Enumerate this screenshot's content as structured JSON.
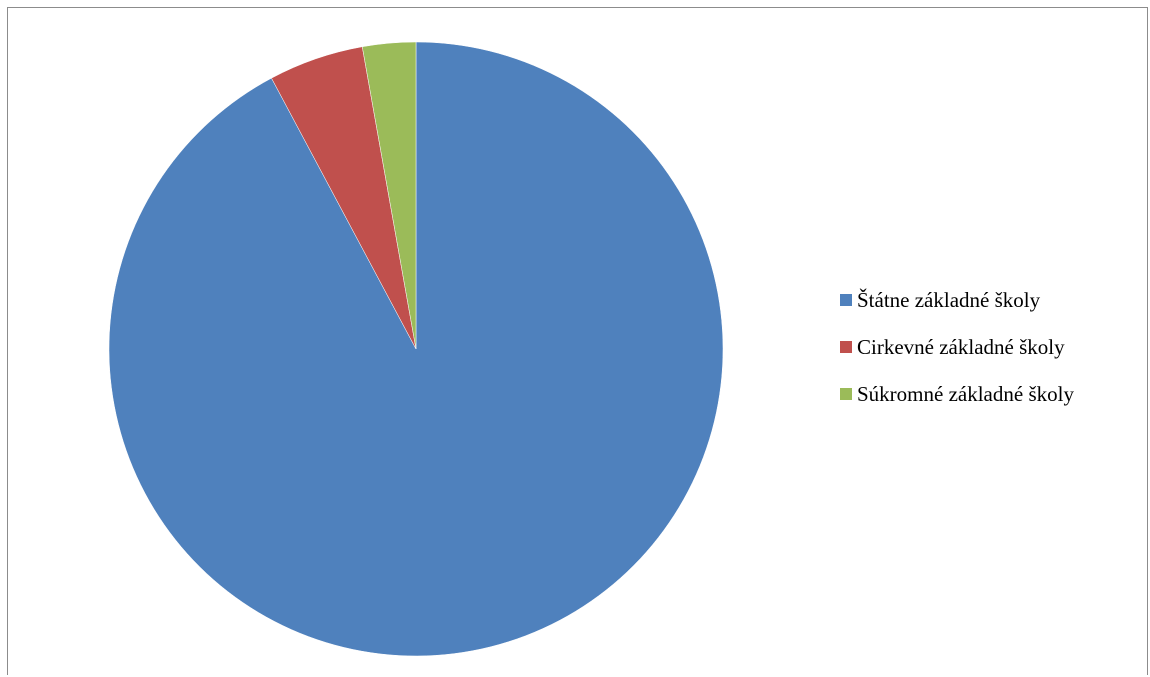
{
  "chart_data": {
    "type": "pie",
    "title": "",
    "slices": [
      {
        "label": "Štátne základné školy",
        "value": 92.2,
        "color": "#4F81BD"
      },
      {
        "label": "Cirkevné základné školy",
        "value": 5.0,
        "color": "#C0504D"
      },
      {
        "label": "Súkromné základné školy",
        "value": 2.8,
        "color": "#9BBB59"
      }
    ],
    "start_angle_deg": 0,
    "direction": "clockwise",
    "legend_position": "right"
  }
}
